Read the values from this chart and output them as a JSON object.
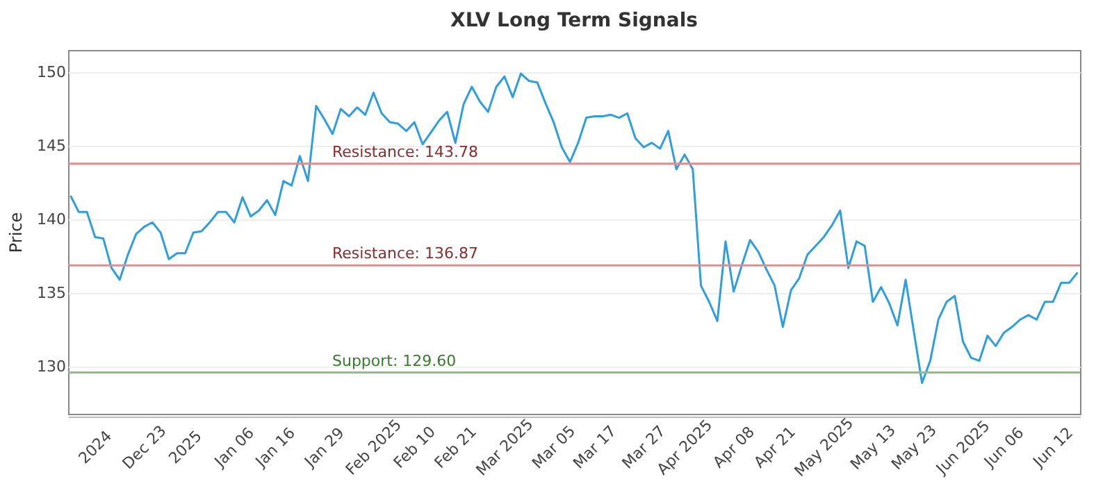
{
  "chart_data": {
    "type": "line",
    "title": "XLV Long Term Signals",
    "ylabel": "Price",
    "categories": [
      null,
      null,
      null,
      "2024",
      null,
      null,
      null,
      null,
      null,
      "Dec 23",
      null,
      null,
      null,
      null,
      "2025",
      null,
      null,
      null,
      null,
      null,
      "Jan 06",
      null,
      null,
      null,
      null,
      "Jan 16",
      null,
      null,
      null,
      null,
      null,
      "Jan 29",
      null,
      null,
      null,
      null,
      null,
      "Feb 2025",
      null,
      null,
      null,
      null,
      "Feb 10",
      null,
      null,
      null,
      null,
      "Feb 21",
      null,
      null,
      null,
      null,
      null,
      "Mar 2025",
      null,
      null,
      null,
      null,
      null,
      "Mar 05",
      null,
      null,
      null,
      null,
      "Mar 17",
      null,
      null,
      null,
      null,
      null,
      "Mar 27",
      null,
      null,
      null,
      null,
      "Apr 2025",
      null,
      null,
      null,
      null,
      null,
      "Apr 08",
      null,
      null,
      null,
      null,
      "Apr 21",
      null,
      null,
      null,
      null,
      null,
      "May 2025",
      null,
      null,
      null,
      null,
      null,
      "May 13",
      null,
      null,
      null,
      null,
      "May 23",
      null,
      null,
      null,
      null,
      null,
      "Jun 2025",
      null,
      null,
      null,
      null,
      "Jun 06",
      null,
      null,
      null,
      null,
      null,
      "Jun 12",
      null,
      null,
      null
    ],
    "series": [
      {
        "color": "#2d9ee0",
        "values": [
          141.6,
          140.5,
          140.5,
          138.8,
          138.7,
          136.7,
          135.9,
          137.6,
          139.0,
          139.5,
          139.8,
          139.1,
          137.3,
          137.7,
          137.7,
          139.1,
          139.2,
          139.8,
          140.5,
          140.5,
          139.8,
          141.5,
          140.2,
          140.6,
          141.3,
          140.3,
          142.6,
          142.3,
          144.3,
          142.6,
          147.7,
          146.8,
          145.8,
          147.5,
          147.0,
          147.6,
          147.1,
          148.6,
          147.2,
          146.6,
          146.5,
          146.0,
          146.6,
          145.1,
          145.9,
          146.7,
          147.3,
          145.2,
          147.8,
          149.0,
          148.0,
          147.3,
          149.0,
          149.7,
          148.3,
          149.9,
          149.4,
          149.3,
          147.9,
          146.6,
          144.9,
          143.9,
          145.2,
          146.9,
          147.0,
          147.0,
          147.1,
          146.9,
          147.2,
          145.5,
          144.9,
          145.2,
          144.8,
          146.0,
          143.4,
          144.4,
          143.4,
          135.5,
          134.4,
          133.1,
          138.5,
          135.1,
          136.9,
          138.6,
          137.8,
          136.6,
          135.5,
          132.7,
          135.2,
          136.0,
          137.6,
          138.2,
          138.8,
          139.6,
          140.6,
          136.7,
          138.5,
          138.2,
          134.4,
          135.4,
          134.3,
          132.8,
          135.9,
          132.4,
          128.9,
          130.4,
          133.2,
          134.4,
          134.8,
          131.7,
          130.6,
          130.4,
          132.1,
          131.4,
          132.3,
          132.7,
          133.2,
          133.5,
          133.2,
          134.4,
          134.4,
          135.7,
          135.7,
          136.4
        ]
      }
    ],
    "ylim": [
      126.8,
      151.5
    ],
    "yticks": [
      130,
      135,
      140,
      145,
      150
    ],
    "grid": "y",
    "marker": "none",
    "line_style": "solid",
    "ref_lines": [
      {
        "axis": "y",
        "value": 143.78,
        "label": "Resistance: 143.78",
        "color": "#e88a8a"
      },
      {
        "axis": "y",
        "value": 136.87,
        "label": "Resistance: 136.87",
        "color": "#e88a8a"
      },
      {
        "axis": "y",
        "value": 129.6,
        "label": "Support: 129.60",
        "color": "#8fbf85"
      }
    ]
  }
}
